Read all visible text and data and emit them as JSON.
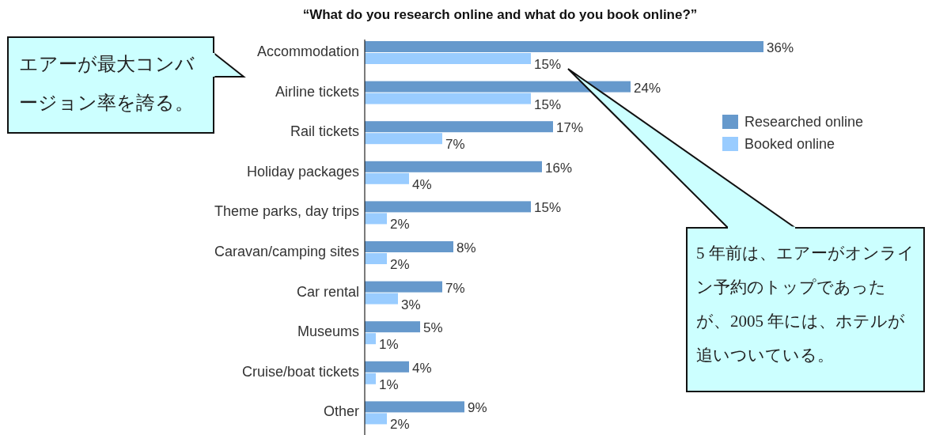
{
  "chart_data": {
    "type": "bar",
    "orientation": "horizontal",
    "title": "“What do you research online and what do you book online?”",
    "categories": [
      "Accommodation",
      "Airline tickets",
      "Rail tickets",
      "Holiday packages",
      "Theme parks, day trips",
      "Caravan/camping sites",
      "Car rental",
      "Museums",
      "Cruise/boat tickets",
      "Other"
    ],
    "series": [
      {
        "name": "Researched online",
        "color": "#6699cc",
        "values": [
          36,
          24,
          17,
          16,
          15,
          8,
          7,
          5,
          4,
          9
        ],
        "value_labels": [
          "36%",
          "24%",
          "17%",
          "16%",
          "15%",
          "8%",
          "7%",
          "5%",
          "4%",
          "9%"
        ]
      },
      {
        "name": "Booked online",
        "color": "#99ccff",
        "values": [
          15,
          15,
          7,
          4,
          2,
          2,
          3,
          1,
          1,
          2
        ],
        "value_labels": [
          "15%",
          "15%",
          "7%",
          "4%",
          "2%",
          "2%",
          "3%",
          "1%",
          "1%",
          "2%"
        ]
      }
    ],
    "legend": "right",
    "annotations": [
      "エアーが最大コンバージョン率を誇る。",
      "5 年前は、エアーがオンライン予約のトップであったが、2005 年には、ホテルが追いついている。"
    ]
  }
}
